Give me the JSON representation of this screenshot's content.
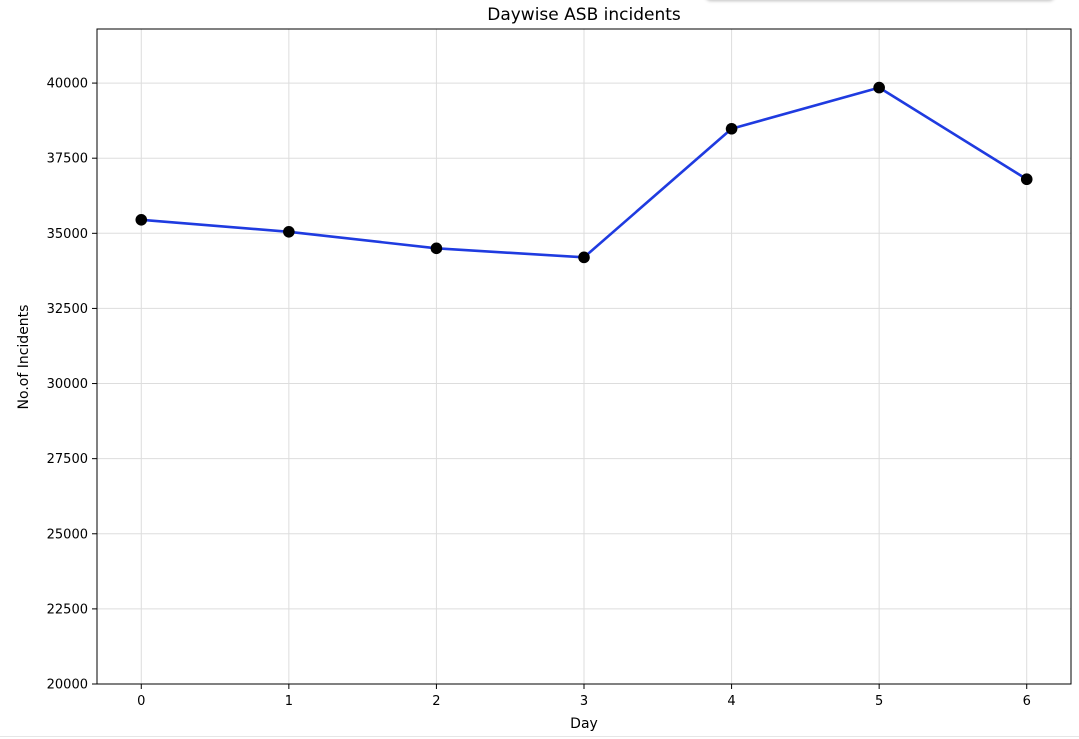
{
  "chart_data": {
    "type": "line",
    "title": "Daywise ASB incidents",
    "xlabel": "Day",
    "ylabel": "No.of Incidents",
    "x": [
      0,
      1,
      2,
      3,
      4,
      5,
      6
    ],
    "series": [
      {
        "values": [
          35450,
          35050,
          34500,
          34200,
          38480,
          39850,
          36800
        ]
      }
    ],
    "xlim": [
      -0.3,
      6.3
    ],
    "ylim": [
      20000,
      41800
    ],
    "xticks": [
      "0",
      "1",
      "2",
      "3",
      "4",
      "5",
      "6"
    ],
    "yticks": [
      "20000",
      "22500",
      "25000",
      "27500",
      "30000",
      "32500",
      "35000",
      "37500",
      "40000"
    ],
    "grid": true,
    "line_color": "#1f3be0",
    "marker_color": "#000000"
  }
}
